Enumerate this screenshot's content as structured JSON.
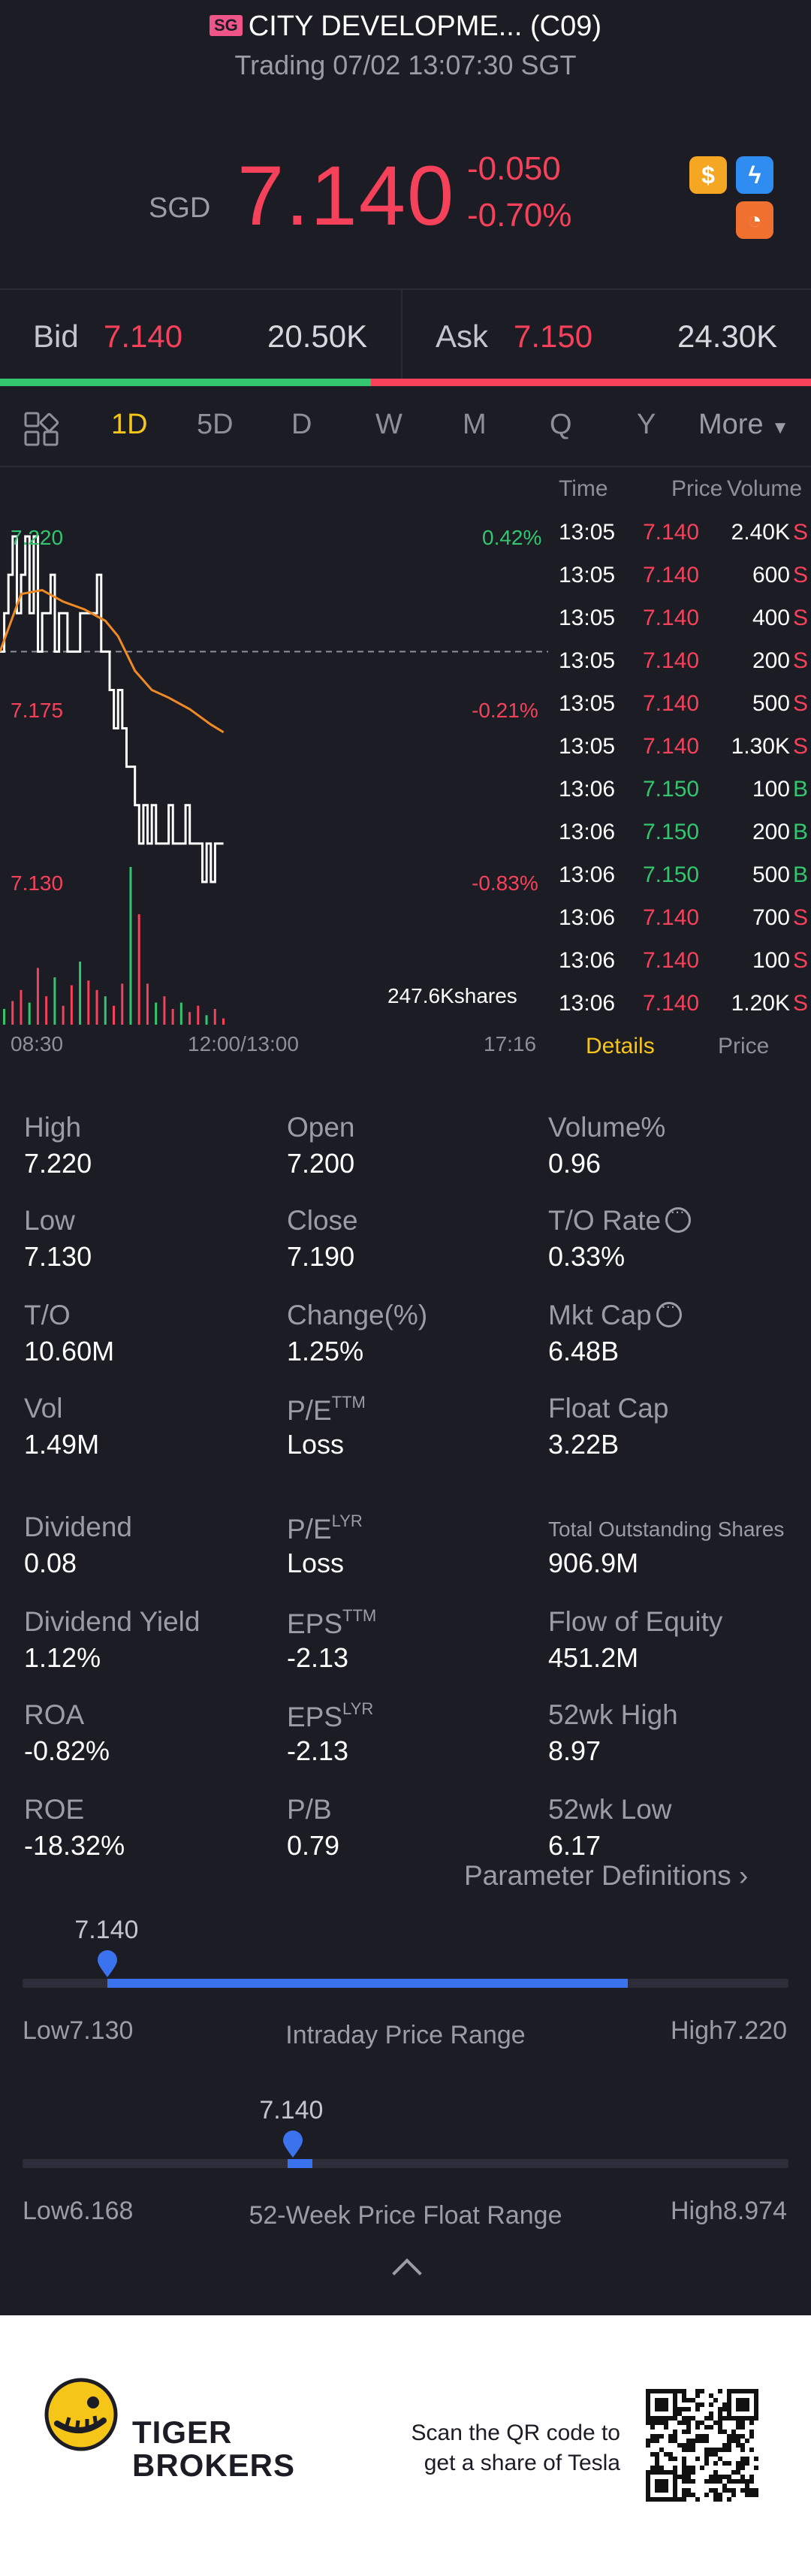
{
  "header": {
    "market_badge": "SG",
    "title": "CITY DEVELOPME... (C09)",
    "status": "Trading 07/02 13:07:30 SGT",
    "currency": "SGD",
    "last_price": "7.140",
    "change_abs": "-0.050",
    "change_pct": "-0.70%",
    "icons": [
      "dollar-icon",
      "flash-icon",
      "pie-chart-icon"
    ],
    "colors": {
      "down": "#f5425a",
      "up": "#34c56f",
      "accent": "#f5c518"
    }
  },
  "bidask": {
    "bid_label": "Bid",
    "bid_price": "7.140",
    "bid_size": "20.50K",
    "ask_label": "Ask",
    "ask_price": "7.150",
    "ask_size": "24.30K",
    "bid_ratio": 0.457
  },
  "tabs": [
    "1D",
    "5D",
    "D",
    "W",
    "M",
    "Q",
    "Y",
    "More"
  ],
  "active_tab": "1D",
  "chart_data": {
    "type": "line",
    "price_labels": {
      "high": "7.220",
      "mid": "7.175",
      "low": "7.130"
    },
    "pct_labels": {
      "high": "0.42%",
      "mid": "-0.21%",
      "low": "-0.83%"
    },
    "time_labels": [
      "08:30",
      "12:00/13:00",
      "17:16"
    ],
    "volume_label": "247.6Kshares",
    "ylim": [
      7.13,
      7.22
    ],
    "prev_close": 7.19,
    "price_series": [
      [
        0,
        7.19
      ],
      [
        1,
        7.2
      ],
      [
        2,
        7.21
      ],
      [
        3,
        7.22
      ],
      [
        4,
        7.2
      ],
      [
        5,
        7.21
      ],
      [
        6,
        7.22
      ],
      [
        7,
        7.2
      ],
      [
        8,
        7.22
      ],
      [
        9,
        7.19
      ],
      [
        10,
        7.2
      ],
      [
        11,
        7.2
      ],
      [
        12,
        7.21
      ],
      [
        13,
        7.19
      ],
      [
        14,
        7.2
      ],
      [
        15,
        7.2
      ],
      [
        16,
        7.19
      ],
      [
        17,
        7.19
      ],
      [
        18,
        7.19
      ],
      [
        19,
        7.2
      ],
      [
        20,
        7.2
      ],
      [
        21,
        7.2
      ],
      [
        22,
        7.2
      ],
      [
        23,
        7.21
      ],
      [
        24,
        7.19
      ],
      [
        25,
        7.19
      ],
      [
        26,
        7.18
      ],
      [
        27,
        7.17
      ],
      [
        28,
        7.18
      ],
      [
        29,
        7.17
      ],
      [
        30,
        7.16
      ],
      [
        31,
        7.16
      ],
      [
        32,
        7.15
      ],
      [
        33,
        7.14
      ],
      [
        34,
        7.15
      ],
      [
        35,
        7.14
      ],
      [
        36,
        7.15
      ],
      [
        37,
        7.14
      ],
      [
        38,
        7.14
      ],
      [
        39,
        7.14
      ],
      [
        40,
        7.15
      ],
      [
        41,
        7.14
      ],
      [
        42,
        7.14
      ],
      [
        43,
        7.14
      ],
      [
        44,
        7.15
      ],
      [
        45,
        7.14
      ],
      [
        46,
        7.14
      ],
      [
        47,
        7.14
      ],
      [
        48,
        7.13
      ],
      [
        49,
        7.14
      ],
      [
        50,
        7.13
      ],
      [
        51,
        7.14
      ],
      [
        52,
        7.14
      ],
      [
        53,
        7.14
      ]
    ],
    "avg_series": [
      [
        0,
        7.19
      ],
      [
        5,
        7.205
      ],
      [
        10,
        7.206
      ],
      [
        15,
        7.203
      ],
      [
        20,
        7.201
      ],
      [
        25,
        7.198
      ],
      [
        28,
        7.194
      ],
      [
        32,
        7.185
      ],
      [
        36,
        7.18
      ],
      [
        40,
        7.178
      ],
      [
        45,
        7.175
      ],
      [
        50,
        7.171
      ],
      [
        53,
        7.169
      ]
    ],
    "volume_bars": [
      [
        0,
        10
      ],
      [
        2,
        15
      ],
      [
        4,
        22
      ],
      [
        6,
        14
      ],
      [
        8,
        36
      ],
      [
        10,
        18
      ],
      [
        12,
        30
      ],
      [
        14,
        12
      ],
      [
        16,
        25
      ],
      [
        18,
        40
      ],
      [
        20,
        28
      ],
      [
        22,
        22
      ],
      [
        24,
        18
      ],
      [
        26,
        12
      ],
      [
        28,
        26
      ],
      [
        30,
        100
      ],
      [
        32,
        70
      ],
      [
        34,
        26
      ],
      [
        36,
        14
      ],
      [
        38,
        18
      ],
      [
        40,
        10
      ],
      [
        42,
        14
      ],
      [
        44,
        8
      ],
      [
        46,
        12
      ],
      [
        48,
        6
      ],
      [
        50,
        10
      ],
      [
        52,
        4
      ]
    ],
    "session_slots": 130
  },
  "time_sales": {
    "headers": [
      "Time",
      "Price",
      "Volume"
    ],
    "rows": [
      {
        "time": "13:05",
        "price": "7.140",
        "vol": "2.40K",
        "side": "S"
      },
      {
        "time": "13:05",
        "price": "7.140",
        "vol": "600",
        "side": "S"
      },
      {
        "time": "13:05",
        "price": "7.140",
        "vol": "400",
        "side": "S"
      },
      {
        "time": "13:05",
        "price": "7.140",
        "vol": "200",
        "side": "S"
      },
      {
        "time": "13:05",
        "price": "7.140",
        "vol": "500",
        "side": "S"
      },
      {
        "time": "13:05",
        "price": "7.140",
        "vol": "1.30K",
        "side": "S"
      },
      {
        "time": "13:06",
        "price": "7.150",
        "vol": "100",
        "side": "B"
      },
      {
        "time": "13:06",
        "price": "7.150",
        "vol": "200",
        "side": "B"
      },
      {
        "time": "13:06",
        "price": "7.150",
        "vol": "500",
        "side": "B"
      },
      {
        "time": "13:06",
        "price": "7.140",
        "vol": "700",
        "side": "S"
      },
      {
        "time": "13:06",
        "price": "7.140",
        "vol": "100",
        "side": "S"
      },
      {
        "time": "13:06",
        "price": "7.140",
        "vol": "1.20K",
        "side": "S"
      }
    ],
    "tab_details": "Details",
    "tab_price": "Price"
  },
  "stats": {
    "high": {
      "label": "High",
      "value": "7.220"
    },
    "open": {
      "label": "Open",
      "value": "7.200"
    },
    "volume_pct": {
      "label": "Volume%",
      "value": "0.96"
    },
    "low": {
      "label": "Low",
      "value": "7.130"
    },
    "close": {
      "label": "Close",
      "value": "7.190"
    },
    "to_rate": {
      "label": "T/O Rate",
      "value": "0.33%"
    },
    "to": {
      "label": "T/O",
      "value": "10.60M"
    },
    "change": {
      "label": "Change(%)",
      "value": "1.25%"
    },
    "mkt_cap": {
      "label": "Mkt Cap",
      "value": "6.48B"
    },
    "vol": {
      "label": "Vol",
      "value": "1.49M"
    },
    "pe_ttm": {
      "label": "P/E",
      "sup": "TTM",
      "value": "Loss"
    },
    "float_cap": {
      "label": "Float Cap",
      "value": "3.22B"
    },
    "dividend": {
      "label": "Dividend",
      "value": "0.08"
    },
    "pe_lyr": {
      "label": "P/E",
      "sup": "LYR",
      "value": "Loss"
    },
    "total_shares": {
      "label": "Total Outstanding Shares",
      "value": "906.9M"
    },
    "div_yield": {
      "label": "Dividend Yield",
      "value": "1.12%"
    },
    "eps_ttm": {
      "label": "EPS",
      "sup": "TTM",
      "value": "-2.13"
    },
    "flow_equity": {
      "label": "Flow of Equity",
      "value": "451.2M"
    },
    "roa": {
      "label": "ROA",
      "value": "-0.82%"
    },
    "eps_lyr": {
      "label": "EPS",
      "sup": "LYR",
      "value": "-2.13"
    },
    "wk52_high": {
      "label": "52wk High",
      "value": "8.97"
    },
    "roe": {
      "label": "ROE",
      "value": "-18.32%"
    },
    "pb": {
      "label": "P/B",
      "value": "0.79"
    },
    "wk52_low": {
      "label": "52wk Low",
      "value": "6.17"
    },
    "param_def": "Parameter Definitions"
  },
  "intraday_range": {
    "title": "Intraday Price Range",
    "low_label": "Low7.130",
    "high_label": "High7.220",
    "current": "7.140",
    "low": 7.13,
    "high": 7.22,
    "value": 7.14,
    "fill_end_ratio": 0.79
  },
  "week52_range": {
    "title": "52-Week Price Float Range",
    "low_label": "Low6.168",
    "high_label": "High8.974",
    "current": "7.140",
    "low": 6.168,
    "high": 8.974,
    "value": 7.14,
    "fill_span": 0.012
  },
  "footer": {
    "brand_line1": "TIGER",
    "brand_line2": "BROKERS",
    "scan_line1": "Scan the QR code to",
    "scan_line2": "get a share of Tesla"
  }
}
